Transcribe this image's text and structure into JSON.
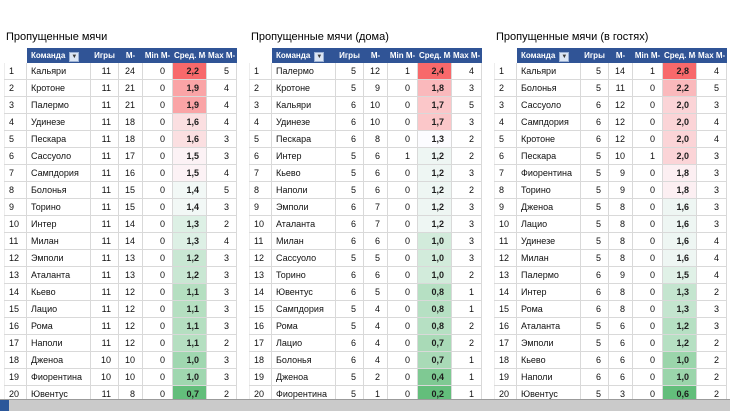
{
  "colors": {
    "header_bg": "#305496",
    "header_text": "#FFFFFF",
    "grid_line": "#D9D9D9",
    "scale_red": "#F8696B",
    "scale_mid": "#FCFCFF",
    "scale_green": "#63BE7B",
    "taskbar_bg": "#CACACA",
    "taskbar_icon_blue": "#2B579A"
  },
  "tables": [
    {
      "id": "total",
      "title": "Пропущенные мячи",
      "columns": [
        {
          "key": "team",
          "label": "Команда",
          "filter": true
        },
        {
          "key": "games",
          "label": "Игры",
          "filter": false
        },
        {
          "key": "goals",
          "label": "М-",
          "filter": false
        },
        {
          "key": "min",
          "label": "Min М-",
          "filter": false
        },
        {
          "key": "avg",
          "label": "Сред. М-",
          "filter": false
        },
        {
          "key": "max",
          "label": "Мах М-",
          "filter": false
        }
      ],
      "rows": [
        [
          1,
          "Кальяри",
          11,
          24,
          0,
          "2,2",
          5
        ],
        [
          2,
          "Кротоне",
          11,
          21,
          0,
          "1,9",
          4
        ],
        [
          3,
          "Палермо",
          11,
          21,
          0,
          "1,9",
          4
        ],
        [
          4,
          "Удинезе",
          11,
          18,
          0,
          "1,6",
          4
        ],
        [
          5,
          "Пескара",
          11,
          18,
          0,
          "1,6",
          3
        ],
        [
          6,
          "Сассуоло",
          11,
          17,
          0,
          "1,5",
          3
        ],
        [
          7,
          "Сампдория",
          11,
          16,
          0,
          "1,5",
          4
        ],
        [
          8,
          "Болонья",
          11,
          15,
          0,
          "1,4",
          5
        ],
        [
          9,
          "Торино",
          11,
          15,
          0,
          "1,4",
          3
        ],
        [
          10,
          "Интер",
          11,
          14,
          0,
          "1,3",
          2
        ],
        [
          11,
          "Милан",
          11,
          14,
          0,
          "1,3",
          4
        ],
        [
          12,
          "Эмполи",
          11,
          13,
          0,
          "1,2",
          3
        ],
        [
          13,
          "Аталанта",
          11,
          13,
          0,
          "1,2",
          3
        ],
        [
          14,
          "Кьево",
          11,
          12,
          0,
          "1,1",
          3
        ],
        [
          15,
          "Лацио",
          11,
          12,
          0,
          "1,1",
          3
        ],
        [
          16,
          "Рома",
          11,
          12,
          0,
          "1,1",
          3
        ],
        [
          17,
          "Наполи",
          11,
          12,
          0,
          "1,1",
          2
        ],
        [
          18,
          "Дженоа",
          10,
          10,
          0,
          "1,0",
          3
        ],
        [
          19,
          "Фиорентина",
          10,
          10,
          0,
          "1,0",
          3
        ],
        [
          20,
          "Ювентус",
          11,
          8,
          0,
          "0,7",
          2
        ]
      ]
    },
    {
      "id": "home",
      "title": "Пропущенные мячи (дома)",
      "columns": [
        {
          "key": "team",
          "label": "Команда",
          "filter": true
        },
        {
          "key": "games",
          "label": "Игры",
          "filter": false
        },
        {
          "key": "goals",
          "label": "М-",
          "filter": false
        },
        {
          "key": "min",
          "label": "Min М-",
          "filter": false
        },
        {
          "key": "avg",
          "label": "Сред. М-",
          "filter": false
        },
        {
          "key": "max",
          "label": "Мах М-",
          "filter": false
        }
      ],
      "rows": [
        [
          1,
          "Палермо",
          5,
          12,
          1,
          "2,4",
          4
        ],
        [
          2,
          "Кротоне",
          5,
          9,
          0,
          "1,8",
          3
        ],
        [
          3,
          "Кальяри",
          6,
          10,
          0,
          "1,7",
          5
        ],
        [
          4,
          "Удинезе",
          6,
          10,
          0,
          "1,7",
          3
        ],
        [
          5,
          "Пескара",
          6,
          8,
          0,
          "1,3",
          2
        ],
        [
          6,
          "Интер",
          5,
          6,
          1,
          "1,2",
          2
        ],
        [
          7,
          "Кьево",
          5,
          6,
          0,
          "1,2",
          3
        ],
        [
          8,
          "Наполи",
          5,
          6,
          0,
          "1,2",
          2
        ],
        [
          9,
          "Эмполи",
          6,
          7,
          0,
          "1,2",
          3
        ],
        [
          10,
          "Аталанта",
          6,
          7,
          0,
          "1,2",
          3
        ],
        [
          11,
          "Милан",
          6,
          6,
          0,
          "1,0",
          3
        ],
        [
          12,
          "Сассуоло",
          5,
          5,
          0,
          "1,0",
          3
        ],
        [
          13,
          "Торино",
          6,
          6,
          0,
          "1,0",
          2
        ],
        [
          14,
          "Ювентус",
          6,
          5,
          0,
          "0,8",
          1
        ],
        [
          15,
          "Сампдория",
          5,
          4,
          0,
          "0,8",
          1
        ],
        [
          16,
          "Рома",
          5,
          4,
          0,
          "0,8",
          2
        ],
        [
          17,
          "Лацио",
          6,
          4,
          0,
          "0,7",
          2
        ],
        [
          18,
          "Болонья",
          6,
          4,
          0,
          "0,7",
          1
        ],
        [
          19,
          "Дженоа",
          5,
          2,
          0,
          "0,4",
          1
        ],
        [
          20,
          "Фиорентина",
          5,
          1,
          0,
          "0,2",
          1
        ]
      ]
    },
    {
      "id": "away",
      "title": "Пропущенные мячи (в гостях)",
      "columns": [
        {
          "key": "team",
          "label": "Команда",
          "filter": true
        },
        {
          "key": "games",
          "label": "Игры",
          "filter": false
        },
        {
          "key": "goals",
          "label": "М-",
          "filter": false
        },
        {
          "key": "min",
          "label": "Min М-",
          "filter": false
        },
        {
          "key": "avg",
          "label": "Сред. М-",
          "filter": false
        },
        {
          "key": "max",
          "label": "Мах М-",
          "filter": false
        }
      ],
      "rows": [
        [
          1,
          "Кальяри",
          5,
          14,
          1,
          "2,8",
          4
        ],
        [
          2,
          "Болонья",
          5,
          11,
          0,
          "2,2",
          5
        ],
        [
          3,
          "Сассуоло",
          6,
          12,
          0,
          "2,0",
          3
        ],
        [
          4,
          "Сампдория",
          6,
          12,
          0,
          "2,0",
          4
        ],
        [
          5,
          "Кротоне",
          6,
          12,
          0,
          "2,0",
          4
        ],
        [
          6,
          "Пескара",
          5,
          10,
          1,
          "2,0",
          3
        ],
        [
          7,
          "Фиорентина",
          5,
          9,
          0,
          "1,8",
          3
        ],
        [
          8,
          "Торино",
          5,
          9,
          0,
          "1,8",
          3
        ],
        [
          9,
          "Дженоа",
          5,
          8,
          0,
          "1,6",
          3
        ],
        [
          10,
          "Лацио",
          5,
          8,
          0,
          "1,6",
          3
        ],
        [
          11,
          "Удинезе",
          5,
          8,
          0,
          "1,6",
          4
        ],
        [
          12,
          "Милан",
          5,
          8,
          0,
          "1,6",
          4
        ],
        [
          13,
          "Палермо",
          6,
          9,
          0,
          "1,5",
          4
        ],
        [
          14,
          "Интер",
          6,
          8,
          0,
          "1,3",
          2
        ],
        [
          15,
          "Рома",
          6,
          8,
          0,
          "1,3",
          3
        ],
        [
          16,
          "Аталанта",
          5,
          6,
          0,
          "1,2",
          3
        ],
        [
          17,
          "Эмполи",
          5,
          6,
          0,
          "1,2",
          2
        ],
        [
          18,
          "Кьево",
          6,
          6,
          0,
          "1,0",
          2
        ],
        [
          19,
          "Наполи",
          6,
          6,
          0,
          "1,0",
          2
        ],
        [
          20,
          "Ювентус",
          5,
          3,
          0,
          "0,6",
          2
        ]
      ]
    }
  ]
}
